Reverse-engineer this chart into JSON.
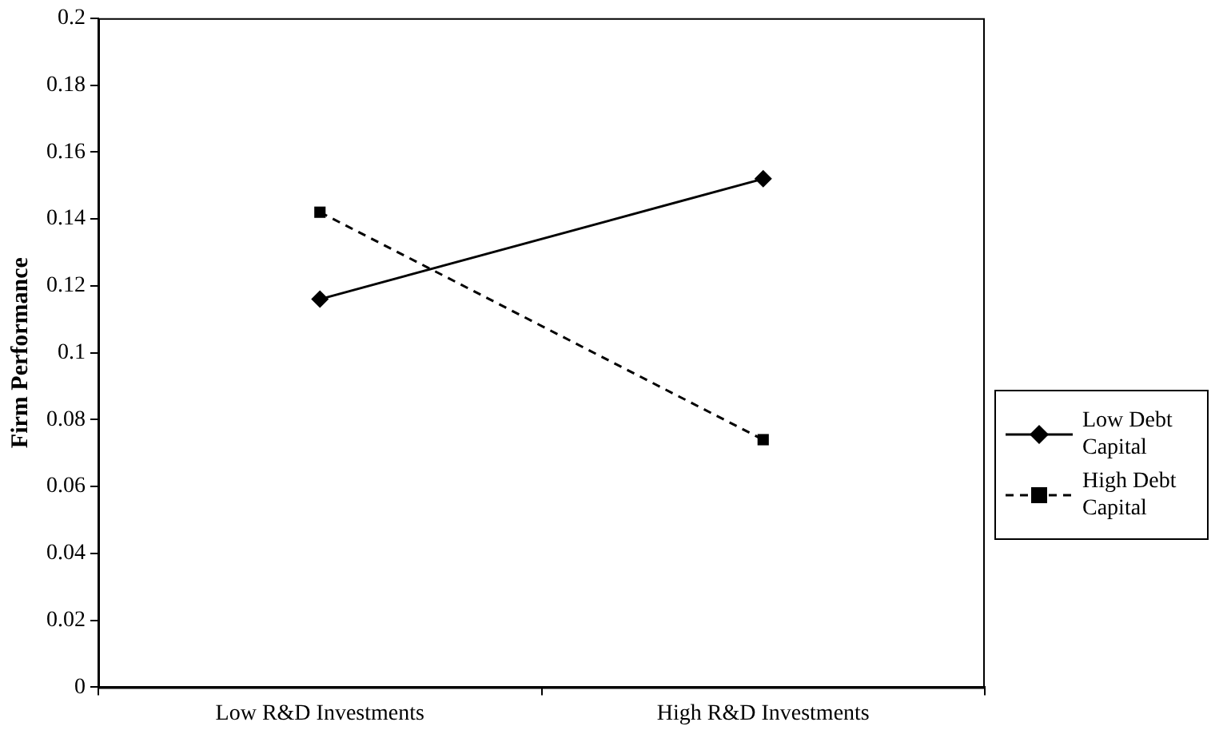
{
  "chart_data": {
    "type": "line",
    "ylabel": "Firm Performance",
    "categories": [
      "Low R&D Investments",
      "High R&D Investments"
    ],
    "series": [
      {
        "name": "Low Debt Capital",
        "color": "#000000",
        "values": [
          0.116,
          0.152
        ],
        "marker": "diamond",
        "line_style": "solid"
      },
      {
        "name": "High Debt Capital",
        "color": "#000000",
        "values": [
          0.142,
          0.074
        ],
        "marker": "square",
        "line_style": "dashed"
      }
    ],
    "ylim": [
      0,
      0.2
    ],
    "yticks": [
      0,
      0.02,
      0.04,
      0.06,
      0.08,
      0.1,
      0.12,
      0.14,
      0.16,
      0.18,
      0.2
    ],
    "grid": false,
    "legend": "right"
  }
}
